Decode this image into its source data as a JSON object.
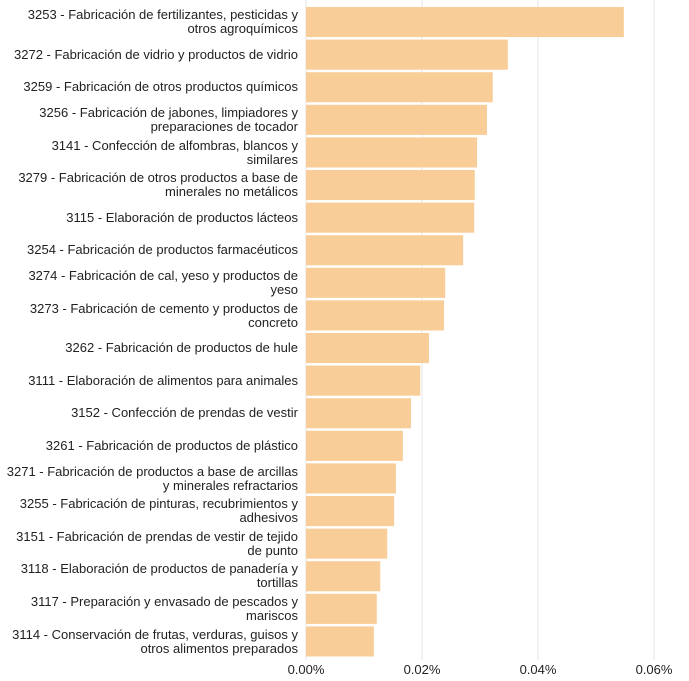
{
  "chart_data": {
    "type": "bar",
    "orientation": "horizontal",
    "color": "#f9cd98",
    "grid": true,
    "categories": [
      "3253 - Fabricación de fertilizantes, pesticidas y otros agroquímicos",
      "3272 - Fabricación de vidrio y productos de vidrio",
      "3259 - Fabricación de otros productos químicos",
      "3256 - Fabricación de jabones, limpiadores y preparaciones de tocador",
      "3141 - Confección de alfombras, blancos y similares",
      "3279 - Fabricación de otros productos a base de minerales no metálicos",
      "3115 - Elaboración de productos lácteos",
      "3254 - Fabricación de productos farmacéuticos",
      "3274 - Fabricación de cal, yeso y productos de yeso",
      "3273 - Fabricación de cemento y productos de concreto",
      "3262 - Fabricación de productos de hule",
      "3111 - Elaboración de alimentos para animales",
      "3152 - Confección de prendas de vestir",
      "3261 - Fabricación de productos de plástico",
      "3271 - Fabricación de productos a base de arcillas y minerales refractarios",
      "3255 - Fabricación de pinturas, recubrimientos y adhesivos",
      "3151 - Fabricación de prendas de vestir de tejido de punto",
      "3118 - Elaboración de productos de panadería y tortillas",
      "3117 - Preparación y envasado de pescados y mariscos",
      "3114 - Conservación de frutas, verduras, guisos y otros alimentos preparados"
    ],
    "values": [
      0.0548,
      0.0348,
      0.0322,
      0.0312,
      0.0295,
      0.0291,
      0.029,
      0.0271,
      0.024,
      0.0238,
      0.0212,
      0.0197,
      0.0181,
      0.0167,
      0.0155,
      0.0152,
      0.014,
      0.0128,
      0.0122,
      0.0117
    ],
    "xlim": [
      0,
      0.066
    ],
    "xticks": [
      {
        "value": 0,
        "label": "0.00%"
      },
      {
        "value": 0.02,
        "label": "0.02%"
      },
      {
        "value": 0.04,
        "label": "0.04%"
      },
      {
        "value": 0.06,
        "label": "0.06%"
      }
    ]
  }
}
